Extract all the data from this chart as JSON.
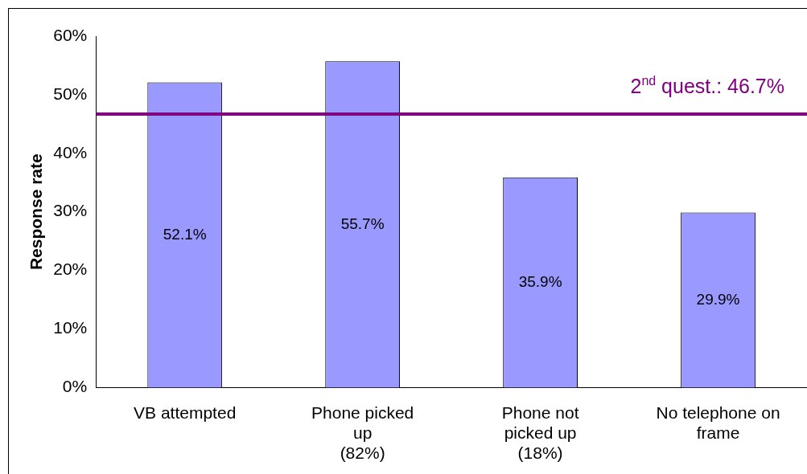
{
  "chart_data": {
    "type": "bar",
    "ylabel": "Response rate",
    "categories": [
      "VB attempted",
      "Phone picked\nup\n(82%)",
      "Phone not\npicked up\n(18%)",
      "No telephone on\nframe"
    ],
    "values": [
      52.1,
      55.7,
      35.9,
      29.9
    ],
    "color": "#9999ff",
    "value_labels": [
      "52.1%",
      "55.7%",
      "35.9%",
      "29.9%"
    ],
    "ylim": [
      0,
      60
    ],
    "yticks": [
      {
        "value": 0,
        "label": "0%"
      },
      {
        "value": 10,
        "label": "10%"
      },
      {
        "value": 20,
        "label": "20%"
      },
      {
        "value": 30,
        "label": "30%"
      },
      {
        "value": 40,
        "label": "40%"
      },
      {
        "value": 50,
        "label": "50%"
      },
      {
        "value": 60,
        "label": "60%"
      }
    ],
    "ref_lines": [
      {
        "axis": "y",
        "value": 46.7,
        "label": "2$^{nd}$ quest.: 46.7%",
        "color": "#800080"
      }
    ],
    "grid": false,
    "legend": false
  }
}
